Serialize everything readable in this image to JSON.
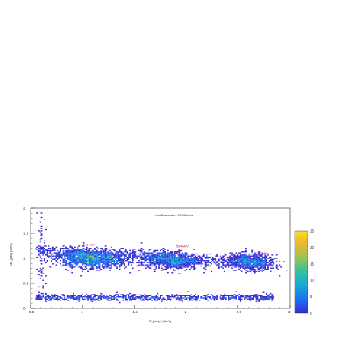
{
  "chart_data": {
    "type": "heatmap",
    "title": "GasPressure = 78.65mbar",
    "xlabel": "E_{strip} (MeV)",
    "ylabel": "ΔE_{gas} (MeV)",
    "xlim": [
      0.5,
      3.0
    ],
    "ylim": [
      0.0,
      2.0
    ],
    "x_ticks": [
      "0.5",
      "1",
      "1.5",
      "2",
      "2.5",
      "3"
    ],
    "y_ticks": [
      "0",
      "0.5",
      "1",
      "1.5",
      "2"
    ],
    "colorbar": {
      "range": [
        0,
        25
      ],
      "ticks": [
        "0",
        "5",
        "10",
        "15",
        "20",
        "25"
      ],
      "colors": [
        "#3a2ad0",
        "#1b6ff2",
        "#18a8d8",
        "#37c39a",
        "#a9c148",
        "#f0b62f",
        "#f9e21b"
      ]
    },
    "grid": false,
    "annotations": [
      {
        "text": "2.41 MeV",
        "x": 1.05,
        "y": 1.25
      },
      {
        "text": "2.94 MeV",
        "x": 1.95,
        "y": 1.22
      },
      {
        "text": "3.41 MeV",
        "x": 2.72,
        "y": 1.08
      }
    ],
    "clusters": [
      {
        "name": "alpha-1",
        "cx": 1.08,
        "cy": 1.0,
        "sx": 0.17,
        "sy": 0.09,
        "peak": 25,
        "count": 260
      },
      {
        "name": "alpha-2",
        "cx": 1.85,
        "cy": 0.97,
        "sx": 0.14,
        "sy": 0.085,
        "peak": 22,
        "count": 200
      },
      {
        "name": "alpha-3",
        "cx": 2.62,
        "cy": 0.93,
        "sx": 0.11,
        "sy": 0.08,
        "peak": 18,
        "count": 150
      }
    ],
    "bands": [
      {
        "name": "upper-tail",
        "x_from": 0.55,
        "x_to": 2.85,
        "y_from": 1.16,
        "y_to": 0.9
      },
      {
        "name": "low-band",
        "x_from": 0.55,
        "x_to": 2.85,
        "y": 0.22
      },
      {
        "name": "left-column",
        "x": 0.57,
        "y_from": 0.25,
        "y_to": 1.95
      }
    ]
  }
}
